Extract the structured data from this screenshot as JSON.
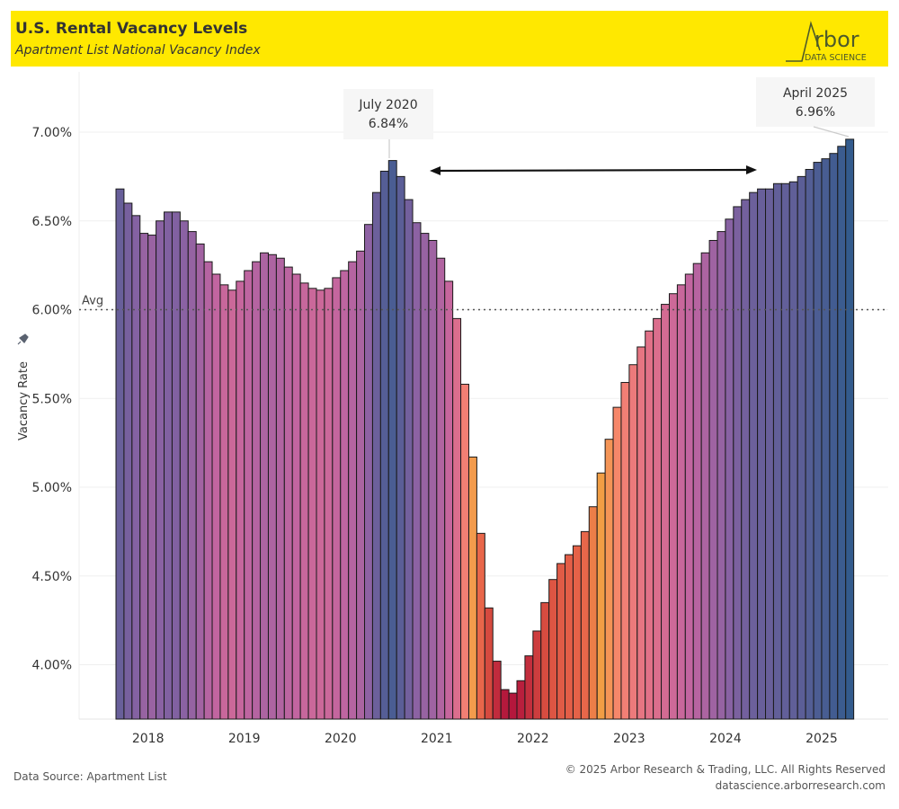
{
  "header": {
    "title": "U.S. Rental Vacancy Levels",
    "subtitle": "Apartment List National Vacancy Index",
    "logo_text": "Arbor",
    "logo_sub": "DATA SCIENCE",
    "background": "#ffe800"
  },
  "footer": {
    "source": "Data Source: Apartment List",
    "copyright": "© 2025 Arbor Research & Trading, LLC. All Rights Reserved",
    "website": "datascience.arborresearch.com"
  },
  "chart_data": {
    "type": "bar",
    "title": "",
    "xlabel": "",
    "ylabel": "Vacancy Rate",
    "ylabel_icon": "pin-icon",
    "ylim": [
      3.69,
      7.25
    ],
    "yticks": [
      "4.00%",
      "4.50%",
      "5.00%",
      "5.50%",
      "6.00%",
      "6.50%",
      "7.00%"
    ],
    "ytick_values": [
      4.0,
      4.5,
      5.0,
      5.5,
      6.0,
      6.5,
      7.0
    ],
    "xticks": [
      "2018",
      "2019",
      "2020",
      "2021",
      "2022",
      "2023",
      "2024",
      "2025"
    ],
    "grid": true,
    "start_month": "2017-09",
    "end_month": "2025-04",
    "values": [
      6.68,
      6.6,
      6.53,
      6.43,
      6.42,
      6.5,
      6.55,
      6.55,
      6.5,
      6.44,
      6.37,
      6.27,
      6.2,
      6.14,
      6.11,
      6.16,
      6.22,
      6.27,
      6.32,
      6.31,
      6.29,
      6.24,
      6.2,
      6.15,
      6.12,
      6.11,
      6.12,
      6.18,
      6.22,
      6.27,
      6.33,
      6.48,
      6.66,
      6.78,
      6.84,
      6.75,
      6.62,
      6.49,
      6.43,
      6.39,
      6.29,
      6.16,
      5.95,
      5.58,
      5.17,
      4.74,
      4.32,
      4.02,
      3.86,
      3.84,
      3.91,
      4.05,
      4.19,
      4.35,
      4.48,
      4.57,
      4.62,
      4.67,
      4.75,
      4.89,
      5.08,
      5.27,
      5.45,
      5.59,
      5.69,
      5.79,
      5.88,
      5.95,
      6.03,
      6.09,
      6.14,
      6.2,
      6.26,
      6.32,
      6.39,
      6.44,
      6.51,
      6.58,
      6.62,
      6.66,
      6.68,
      6.68,
      6.71,
      6.71,
      6.72,
      6.75,
      6.79,
      6.83,
      6.85,
      6.88,
      6.92,
      6.96
    ],
    "reference_line": {
      "label": "Avg",
      "value": 6.0
    },
    "annotations": [
      {
        "label": "July 2020",
        "value_text": "6.84%"
      },
      {
        "label": "April 2025",
        "value_text": "6.96%"
      }
    ],
    "arrow": {
      "from": "2021",
      "to": "2024",
      "style": "double-headed"
    },
    "color_scale": [
      "#b3163c",
      "#d5493f",
      "#e8674a",
      "#f2a044",
      "#f7836f",
      "#e07089",
      "#c265a0",
      "#8a62a3",
      "#335b8d"
    ]
  }
}
